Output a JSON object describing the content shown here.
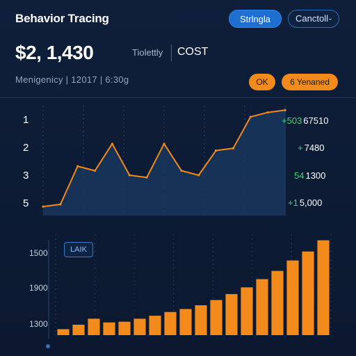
{
  "header": {
    "title": "Behavior Tracing",
    "primary_button": "Strlngla",
    "dropdown_button": "Canctoll",
    "dropdown_icon": "chevron-down-icon"
  },
  "summary": {
    "amount": "$2, 1,430",
    "metric_label": "Tiolettly",
    "metric_value": "COST",
    "meta": "Menigenicy  |  12017  |  6:30g"
  },
  "badges": {
    "ok": "OK",
    "renamed": "6 Yenaned"
  },
  "line_panel": {
    "row_labels": [
      "1",
      "2",
      "3",
      "5"
    ],
    "right_values": [
      {
        "delta": "+503",
        "value": "67510"
      },
      {
        "delta": "+",
        "value": "7480"
      },
      {
        "delta": "54",
        "value": "1300"
      },
      {
        "delta": "+1",
        "value": "5,000"
      }
    ]
  },
  "bar_panel": {
    "legend_tag": "LAIK",
    "y_ticks": [
      "1500",
      "1900",
      "1300"
    ]
  },
  "chart_data": [
    {
      "type": "area",
      "title": "",
      "x": [
        1,
        2,
        3,
        4,
        5,
        6,
        7,
        8,
        9,
        10,
        11,
        12,
        13,
        14,
        15
      ],
      "y": [
        5.0,
        4.9,
        3.2,
        3.4,
        2.2,
        3.6,
        3.7,
        2.2,
        3.4,
        3.6,
        2.5,
        2.4,
        1.0,
        0.8,
        0.7
      ],
      "ylim": [
        0.5,
        5.4
      ],
      "y_inverted": true,
      "line_color": "#f28a1c",
      "fill_color": "#1b3a63",
      "grid": "vertical dashed"
    },
    {
      "type": "bar",
      "title": "",
      "values": [
        8,
        14,
        22,
        17,
        18,
        22,
        26,
        31,
        35,
        40,
        47,
        55,
        64,
        75,
        86,
        100,
        112,
        127
      ],
      "ylim": [
        0,
        135
      ],
      "bar_color": "#f28a1c",
      "grid": "vertical dashed"
    }
  ],
  "colors": {
    "background": "#0d1b33",
    "accent_orange": "#f28a1c",
    "accent_blue": "#1f6fd0",
    "positive_green": "#43d17a"
  }
}
